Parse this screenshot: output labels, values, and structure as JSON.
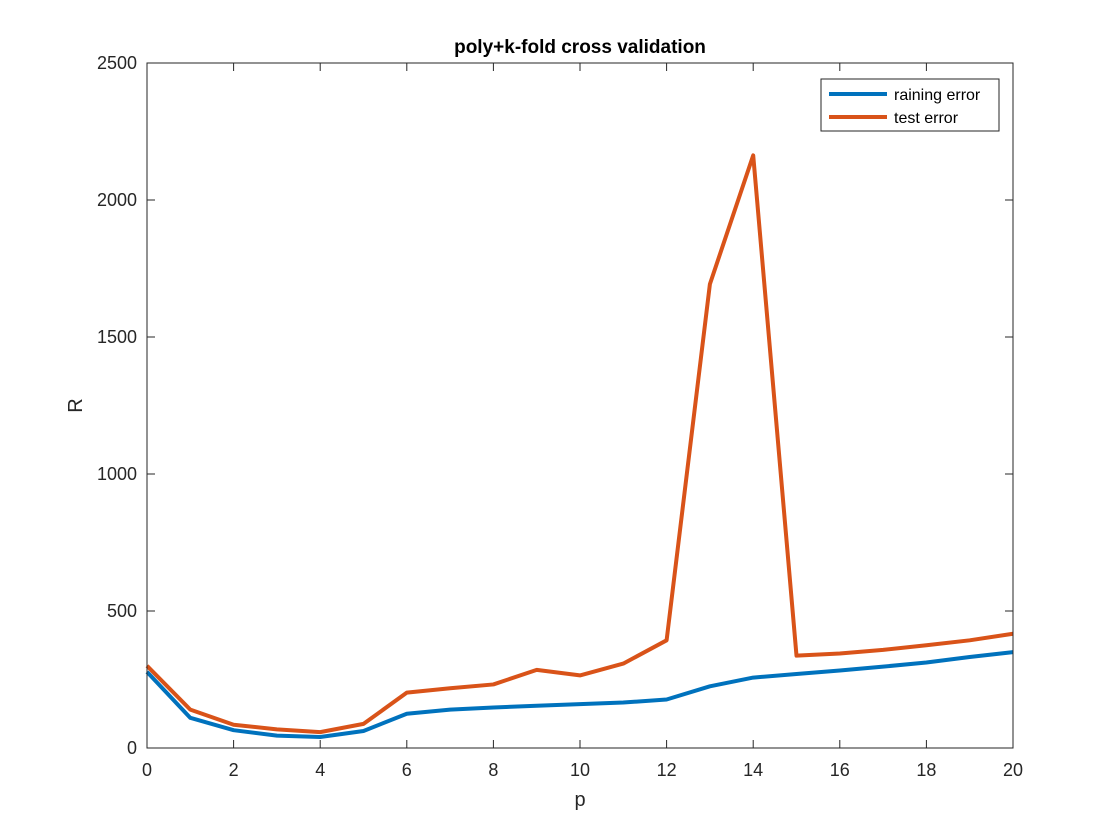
{
  "chart_data": {
    "type": "line",
    "title": "poly+k-fold cross validation",
    "xlabel": "p",
    "ylabel": "R",
    "xlim": [
      0,
      20
    ],
    "ylim": [
      0,
      2500
    ],
    "xticks": [
      0,
      2,
      4,
      6,
      8,
      10,
      12,
      14,
      16,
      18,
      20
    ],
    "yticks": [
      0,
      500,
      1000,
      1500,
      2000,
      2500
    ],
    "grid": false,
    "legend_position": "top-right",
    "x": [
      0,
      1,
      2,
      3,
      4,
      5,
      6,
      7,
      8,
      9,
      10,
      11,
      12,
      13,
      14,
      15,
      16,
      17,
      18,
      19,
      20
    ],
    "series": [
      {
        "name": "raining error",
        "color": "#0072BD",
        "values": [
          278,
          110,
          65,
          45,
          40,
          62,
          125,
          140,
          148,
          154,
          160,
          166,
          177,
          225,
          257,
          270,
          283,
          297,
          312,
          332,
          350
        ]
      },
      {
        "name": "test error",
        "color": "#D95319",
        "values": [
          300,
          140,
          85,
          68,
          58,
          88,
          202,
          218,
          232,
          285,
          265,
          308,
          393,
          1693,
          2163,
          337,
          345,
          358,
          375,
          393,
          417
        ]
      }
    ]
  }
}
